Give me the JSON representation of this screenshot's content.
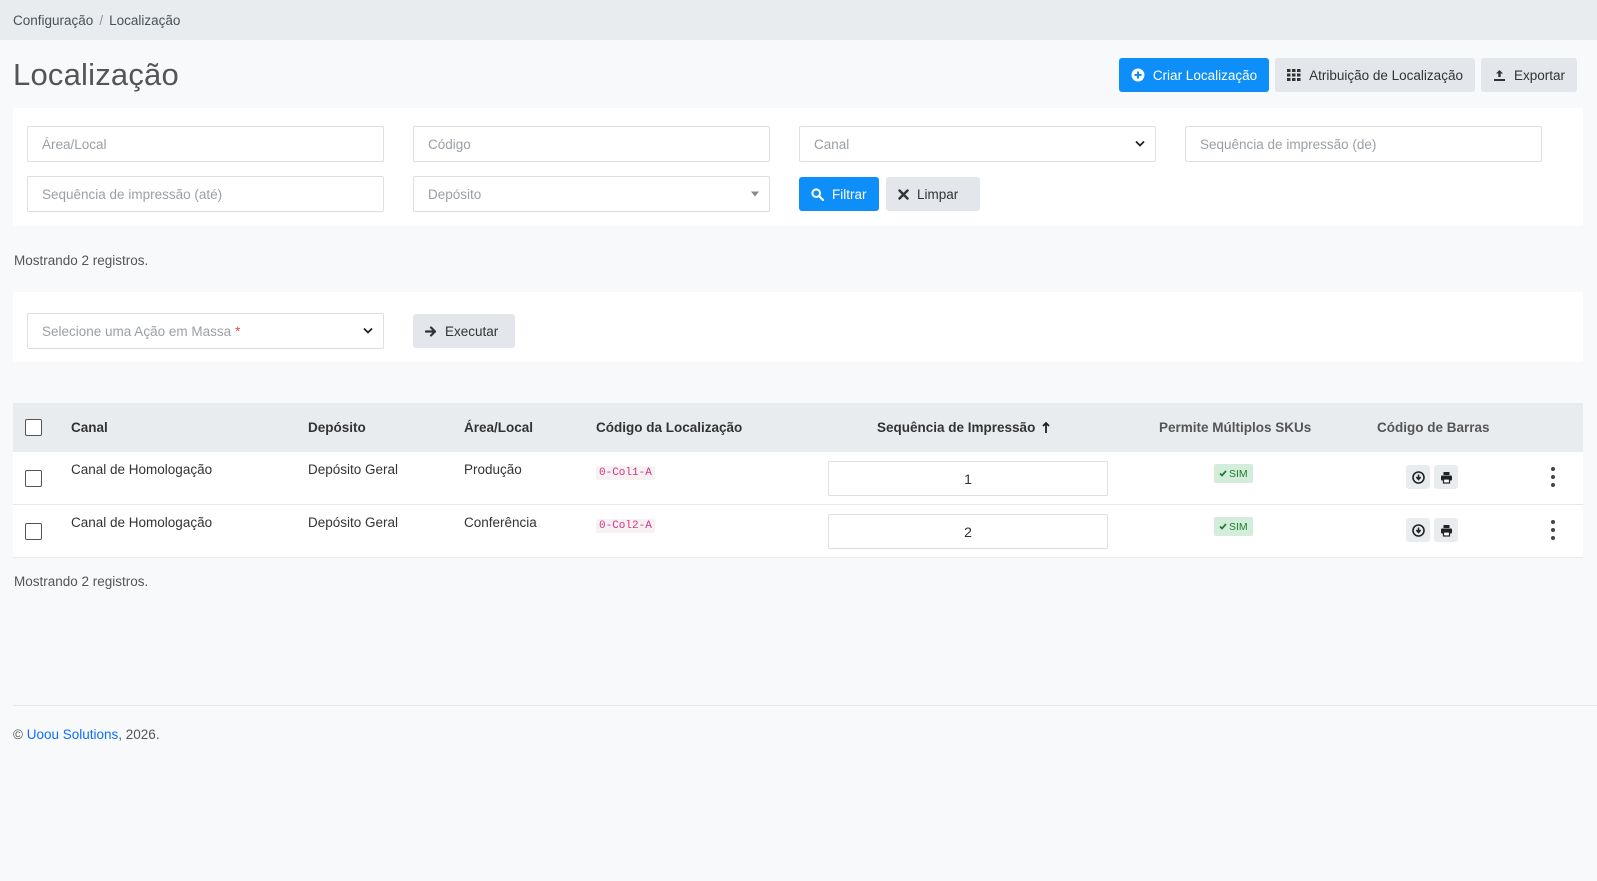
{
  "breadcrumb": {
    "items": [
      "Configuração",
      "Localização"
    ]
  },
  "page": {
    "title": "Localização"
  },
  "actions": {
    "create": "Criar Localização",
    "assign": "Atribuição de Localização",
    "export": "Exportar"
  },
  "filters": {
    "area_placeholder": "Área/Local",
    "code_placeholder": "Código",
    "channel_placeholder": "Canal",
    "seq_from_placeholder": "Sequência de impressão (de)",
    "seq_to_placeholder": "Sequência de impressão (até)",
    "deposit_placeholder": "Depósito",
    "filter_button": "Filtrar",
    "clear_button": "Limpar"
  },
  "summary": {
    "top": "Mostrando 2 registros.",
    "bottom": "Mostrando 2 registros."
  },
  "bulk": {
    "placeholder": "Selecione uma Ação em Massa",
    "required_mark": "*",
    "execute_button": "Executar"
  },
  "table": {
    "headers": {
      "canal": "Canal",
      "deposito": "Depósito",
      "area": "Área/Local",
      "codigo": "Código da Localização",
      "sequencia": "Sequência de Impressão",
      "multiplos": "Permite Múltiplos SKUs",
      "barras": "Código de Barras"
    },
    "rows": [
      {
        "canal": "Canal de Homologação",
        "deposito": "Depósito Geral",
        "area": "Produção",
        "codigo": "0-Col1-A",
        "sequencia": "1",
        "multiplos": "SIM"
      },
      {
        "canal": "Canal de Homologação",
        "deposito": "Depósito Geral",
        "area": "Conferência",
        "codigo": "0-Col2-A",
        "sequencia": "2",
        "multiplos": "SIM"
      }
    ]
  },
  "footer": {
    "copyright": "©",
    "company": "Uoou Solutions",
    "year": ", 2026."
  },
  "colors": {
    "primary": "#0d8ef8",
    "badge_bg": "#d4edda",
    "badge_text": "#1e7e34",
    "code": "#d63384"
  }
}
